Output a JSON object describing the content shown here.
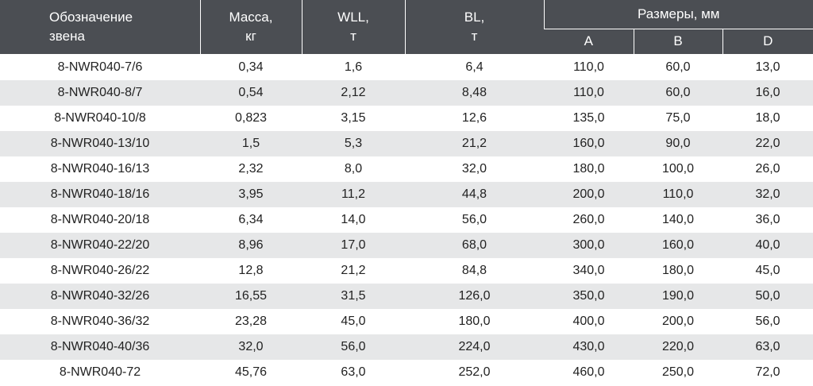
{
  "table": {
    "header": {
      "designation": [
        "Обозначение",
        "звена"
      ],
      "mass": [
        "Масса,",
        "кг"
      ],
      "wll": [
        "WLL,",
        "т"
      ],
      "bl": [
        "BL,",
        "т"
      ],
      "dimensions": "Размеры, мм",
      "sub": [
        "A",
        "B",
        "D"
      ]
    },
    "rows": [
      [
        "8-NWR040-7/6",
        "0,34",
        "1,6",
        "6,4",
        "110,0",
        "60,0",
        "13,0"
      ],
      [
        "8-NWR040-8/7",
        "0,54",
        "2,12",
        "8,48",
        "110,0",
        "60,0",
        "16,0"
      ],
      [
        "8-NWR040-10/8",
        "0,823",
        "3,15",
        "12,6",
        "135,0",
        "75,0",
        "18,0"
      ],
      [
        "8-NWR040-13/10",
        "1,5",
        "5,3",
        "21,2",
        "160,0",
        "90,0",
        "22,0"
      ],
      [
        "8-NWR040-16/13",
        "2,32",
        "8,0",
        "32,0",
        "180,0",
        "100,0",
        "26,0"
      ],
      [
        "8-NWR040-18/16",
        "3,95",
        "11,2",
        "44,8",
        "200,0",
        "110,0",
        "32,0"
      ],
      [
        "8-NWR040-20/18",
        "6,34",
        "14,0",
        "56,0",
        "260,0",
        "140,0",
        "36,0"
      ],
      [
        "8-NWR040-22/20",
        "8,96",
        "17,0",
        "68,0",
        "300,0",
        "160,0",
        "40,0"
      ],
      [
        "8-NWR040-26/22",
        "12,8",
        "21,2",
        "84,8",
        "340,0",
        "180,0",
        "45,0"
      ],
      [
        "8-NWR040-32/26",
        "16,55",
        "31,5",
        "126,0",
        "350,0",
        "190,0",
        "50,0"
      ],
      [
        "8-NWR040-36/32",
        "23,28",
        "45,0",
        "180,0",
        "400,0",
        "200,0",
        "56,0"
      ],
      [
        "8-NWR040-40/36",
        "32,0",
        "56,0",
        "224,0",
        "430,0",
        "220,0",
        "63,0"
      ],
      [
        "8-NWR040-72",
        "45,76",
        "63,0",
        "252,0",
        "460,0",
        "250,0",
        "72,0"
      ]
    ]
  }
}
